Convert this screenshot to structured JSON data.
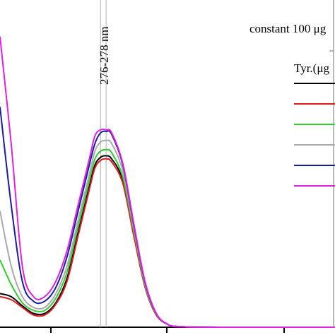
{
  "chart_data": {
    "type": "line",
    "xlim": [
      240,
      360
    ],
    "ylim": [
      0,
      1
    ],
    "grid": false,
    "legend_position": "right",
    "legend_title": "constant 100 μg",
    "legend_header": "Tyr.(μg",
    "annotation": {
      "text": "276-278 nm",
      "x_lines": [
        276,
        278
      ]
    },
    "series": [
      {
        "color": "#000000",
        "points": [
          [
            240,
            0.11
          ],
          [
            244,
            0.1
          ],
          [
            248,
            0.07
          ],
          [
            252,
            0.045
          ],
          [
            256,
            0.045
          ],
          [
            260,
            0.08
          ],
          [
            264,
            0.16
          ],
          [
            268,
            0.31
          ],
          [
            272,
            0.46
          ],
          [
            274,
            0.53
          ],
          [
            276,
            0.555
          ],
          [
            278,
            0.56
          ],
          [
            280,
            0.55
          ],
          [
            284,
            0.48
          ],
          [
            288,
            0.3
          ],
          [
            292,
            0.13
          ],
          [
            296,
            0.04
          ],
          [
            300,
            0.01
          ],
          [
            304,
            0.002
          ],
          [
            320,
            0.0
          ],
          [
            360,
            0.0
          ]
        ]
      },
      {
        "color": "#e31a1c",
        "points": [
          [
            240,
            0.1
          ],
          [
            244,
            0.09
          ],
          [
            248,
            0.065
          ],
          [
            252,
            0.04
          ],
          [
            256,
            0.04
          ],
          [
            260,
            0.075
          ],
          [
            264,
            0.15
          ],
          [
            268,
            0.3
          ],
          [
            272,
            0.45
          ],
          [
            274,
            0.52
          ],
          [
            276,
            0.545
          ],
          [
            278,
            0.55
          ],
          [
            280,
            0.54
          ],
          [
            284,
            0.47
          ],
          [
            288,
            0.295
          ],
          [
            292,
            0.13
          ],
          [
            296,
            0.04
          ],
          [
            300,
            0.01
          ],
          [
            304,
            0.002
          ],
          [
            320,
            0.0
          ],
          [
            360,
            0.0
          ]
        ]
      },
      {
        "color": "#33cc33",
        "points": [
          [
            240,
            0.22
          ],
          [
            244,
            0.14
          ],
          [
            248,
            0.08
          ],
          [
            252,
            0.055
          ],
          [
            256,
            0.055
          ],
          [
            260,
            0.095
          ],
          [
            264,
            0.18
          ],
          [
            268,
            0.33
          ],
          [
            272,
            0.48
          ],
          [
            274,
            0.55
          ],
          [
            276,
            0.575
          ],
          [
            278,
            0.58
          ],
          [
            280,
            0.57
          ],
          [
            284,
            0.49
          ],
          [
            288,
            0.31
          ],
          [
            292,
            0.135
          ],
          [
            296,
            0.042
          ],
          [
            300,
            0.01
          ],
          [
            304,
            0.002
          ],
          [
            320,
            0.0
          ],
          [
            360,
            0.0
          ]
        ]
      },
      {
        "color": "#aaaaaa",
        "points": [
          [
            240,
            0.38
          ],
          [
            244,
            0.2
          ],
          [
            248,
            0.1
          ],
          [
            252,
            0.065
          ],
          [
            256,
            0.065
          ],
          [
            260,
            0.11
          ],
          [
            264,
            0.2
          ],
          [
            268,
            0.35
          ],
          [
            272,
            0.5
          ],
          [
            274,
            0.575
          ],
          [
            276,
            0.605
          ],
          [
            278,
            0.61
          ],
          [
            280,
            0.6
          ],
          [
            284,
            0.51
          ],
          [
            288,
            0.32
          ],
          [
            292,
            0.14
          ],
          [
            296,
            0.043
          ],
          [
            300,
            0.01
          ],
          [
            304,
            0.002
          ],
          [
            320,
            0.0
          ],
          [
            360,
            0.0
          ]
        ]
      },
      {
        "color": "#1a1aa6",
        "points": [
          [
            240,
            0.72
          ],
          [
            244,
            0.4
          ],
          [
            248,
            0.15
          ],
          [
            252,
            0.085
          ],
          [
            256,
            0.085
          ],
          [
            260,
            0.13
          ],
          [
            264,
            0.23
          ],
          [
            268,
            0.38
          ],
          [
            272,
            0.53
          ],
          [
            274,
            0.6
          ],
          [
            276,
            0.635
          ],
          [
            278,
            0.64
          ],
          [
            280,
            0.63
          ],
          [
            284,
            0.53
          ],
          [
            288,
            0.33
          ],
          [
            292,
            0.145
          ],
          [
            296,
            0.044
          ],
          [
            300,
            0.01
          ],
          [
            304,
            0.002
          ],
          [
            320,
            0.0
          ],
          [
            360,
            0.0
          ]
        ]
      },
      {
        "color": "#e021e0",
        "points": [
          [
            240,
            0.95
          ],
          [
            244,
            0.6
          ],
          [
            248,
            0.2
          ],
          [
            252,
            0.1
          ],
          [
            256,
            0.1
          ],
          [
            260,
            0.15
          ],
          [
            264,
            0.25
          ],
          [
            268,
            0.4
          ],
          [
            272,
            0.55
          ],
          [
            274,
            0.625
          ],
          [
            276,
            0.645
          ],
          [
            278,
            0.645
          ],
          [
            280,
            0.635
          ],
          [
            284,
            0.535
          ],
          [
            288,
            0.335
          ],
          [
            292,
            0.148
          ],
          [
            296,
            0.045
          ],
          [
            300,
            0.01
          ],
          [
            304,
            0.002
          ],
          [
            320,
            0.0
          ],
          [
            360,
            0.0
          ]
        ]
      }
    ]
  }
}
